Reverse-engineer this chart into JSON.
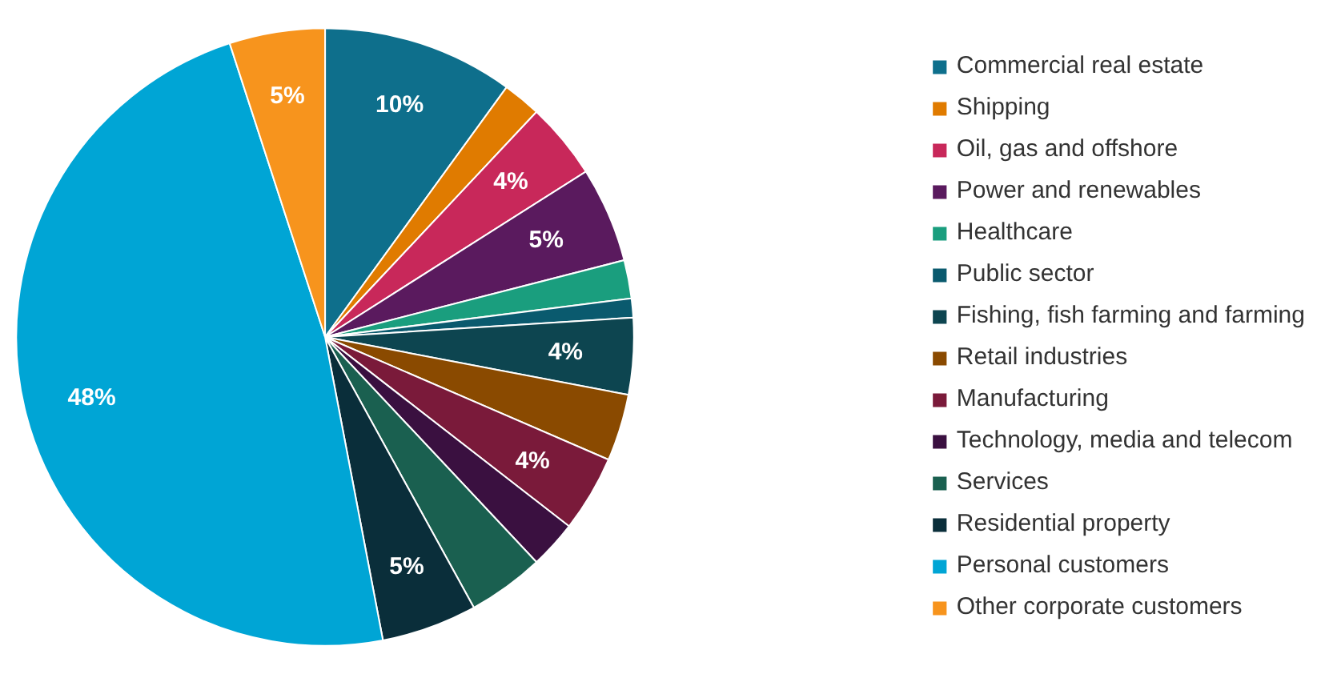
{
  "chart_data": {
    "type": "pie",
    "categories": [
      "Commercial real estate",
      "Shipping",
      "Oil, gas and offshore",
      "Power and renewables",
      "Healthcare",
      "Public sector",
      "Fishing, fish farming and farming",
      "Retail industries",
      "Manufacturing",
      "Technology, media and telecom",
      "Services",
      "Residential property",
      "Personal customers",
      "Other corporate customers"
    ],
    "values": [
      10,
      2,
      4,
      5,
      2,
      1,
      4,
      3.5,
      4,
      2.5,
      4,
      5,
      48,
      5
    ],
    "colors": [
      "#0e6f8c",
      "#e07b00",
      "#c8285a",
      "#5a1a5e",
      "#1a9e7e",
      "#0a5a6e",
      "#0d4550",
      "#8a4a00",
      "#7a1a3a",
      "#3a1040",
      "#1a6050",
      "#0a2e3a",
      "#00a5d5",
      "#f7941d"
    ],
    "value_labels": [
      "10%",
      null,
      "4%",
      "5%",
      null,
      null,
      "4%",
      null,
      "4%",
      null,
      null,
      "5%",
      "48%",
      "5%"
    ],
    "legend": "right"
  }
}
